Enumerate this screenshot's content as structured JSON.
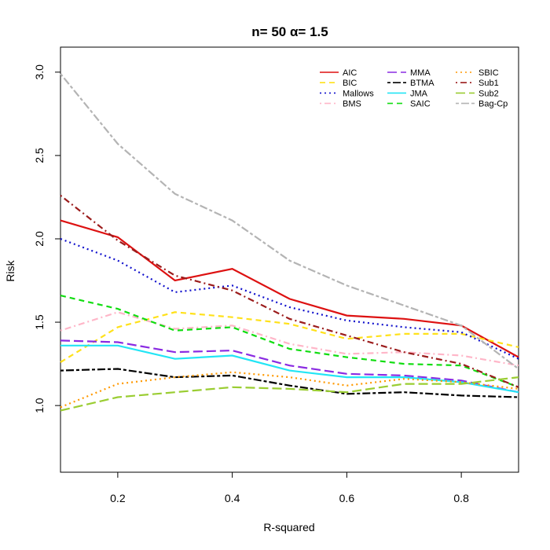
{
  "chart_data": {
    "type": "line",
    "title": "n= 50 α= 1.5",
    "xlabel": "R-squared",
    "ylabel": "Risk",
    "xlim": [
      0.1,
      0.9
    ],
    "ylim": [
      0.6,
      3.15
    ],
    "xticks": [
      0.2,
      0.4,
      0.6,
      0.8
    ],
    "xtick_labels": [
      "0.2",
      "0.4",
      "0.6",
      "0.8"
    ],
    "yticks": [
      1.0,
      1.5,
      2.0,
      2.5,
      3.0
    ],
    "ytick_labels": [
      "1.0",
      "1.5",
      "2.0",
      "2.5",
      "3.0"
    ],
    "grid": false,
    "legend_position": "top-right",
    "x": [
      0.1,
      0.2,
      0.3,
      0.4,
      0.5,
      0.6,
      0.7,
      0.8,
      0.9
    ],
    "series": [
      {
        "name": "AIC",
        "color": "#dd1111",
        "dash": "solid",
        "width": 2.2,
        "values": [
          2.11,
          2.01,
          1.75,
          1.82,
          1.64,
          1.54,
          1.52,
          1.48,
          1.29
        ]
      },
      {
        "name": "BIC",
        "color": "#ffe11a",
        "dash": "dashed",
        "width": 2.2,
        "values": [
          1.26,
          1.47,
          1.56,
          1.53,
          1.49,
          1.4,
          1.43,
          1.43,
          1.35
        ]
      },
      {
        "name": "Mallows",
        "color": "#1010cc",
        "dash": "dotted",
        "width": 2.2,
        "values": [
          2.0,
          1.87,
          1.68,
          1.72,
          1.59,
          1.51,
          1.47,
          1.44,
          1.28
        ]
      },
      {
        "name": "BMS",
        "color": "#ffb6c8",
        "dash": "dashdot",
        "width": 2.2,
        "values": [
          1.45,
          1.56,
          1.46,
          1.48,
          1.37,
          1.31,
          1.32,
          1.3,
          1.24
        ]
      },
      {
        "name": "MMA",
        "color": "#8a2be2",
        "dash": "longdash",
        "width": 2.2,
        "values": [
          1.39,
          1.38,
          1.32,
          1.33,
          1.24,
          1.19,
          1.18,
          1.15,
          1.08
        ]
      },
      {
        "name": "BTMA",
        "color": "#000000",
        "dash": "twodash",
        "width": 2.2,
        "values": [
          1.21,
          1.22,
          1.17,
          1.18,
          1.12,
          1.07,
          1.08,
          1.06,
          1.05
        ]
      },
      {
        "name": "JMA",
        "color": "#22e5f5",
        "dash": "solid",
        "width": 2.2,
        "values": [
          1.36,
          1.36,
          1.28,
          1.3,
          1.21,
          1.17,
          1.17,
          1.14,
          1.08
        ]
      },
      {
        "name": "SAIC",
        "color": "#11dd11",
        "dash": "dashed",
        "width": 2.2,
        "values": [
          1.66,
          1.58,
          1.45,
          1.47,
          1.34,
          1.29,
          1.25,
          1.24,
          1.11
        ]
      },
      {
        "name": "SBIC",
        "color": "#ff9900",
        "dash": "dotted",
        "width": 2.2,
        "values": [
          0.99,
          1.13,
          1.17,
          1.2,
          1.17,
          1.12,
          1.16,
          1.14,
          1.1
        ]
      },
      {
        "name": "Sub1",
        "color": "#9b1c1c",
        "dash": "dashdot",
        "width": 2.2,
        "values": [
          2.26,
          1.99,
          1.78,
          1.69,
          1.52,
          1.42,
          1.32,
          1.25,
          1.11
        ]
      },
      {
        "name": "Sub2",
        "color": "#9acd32",
        "dash": "longdash",
        "width": 2.2,
        "values": [
          0.97,
          1.05,
          1.08,
          1.11,
          1.1,
          1.08,
          1.13,
          1.13,
          1.17
        ]
      },
      {
        "name": "Bag-Cp",
        "color": "#b4b4b4",
        "dash": "twodash",
        "width": 2.2,
        "values": [
          2.99,
          2.57,
          2.27,
          2.11,
          1.87,
          1.72,
          1.6,
          1.48,
          1.22
        ]
      }
    ]
  }
}
